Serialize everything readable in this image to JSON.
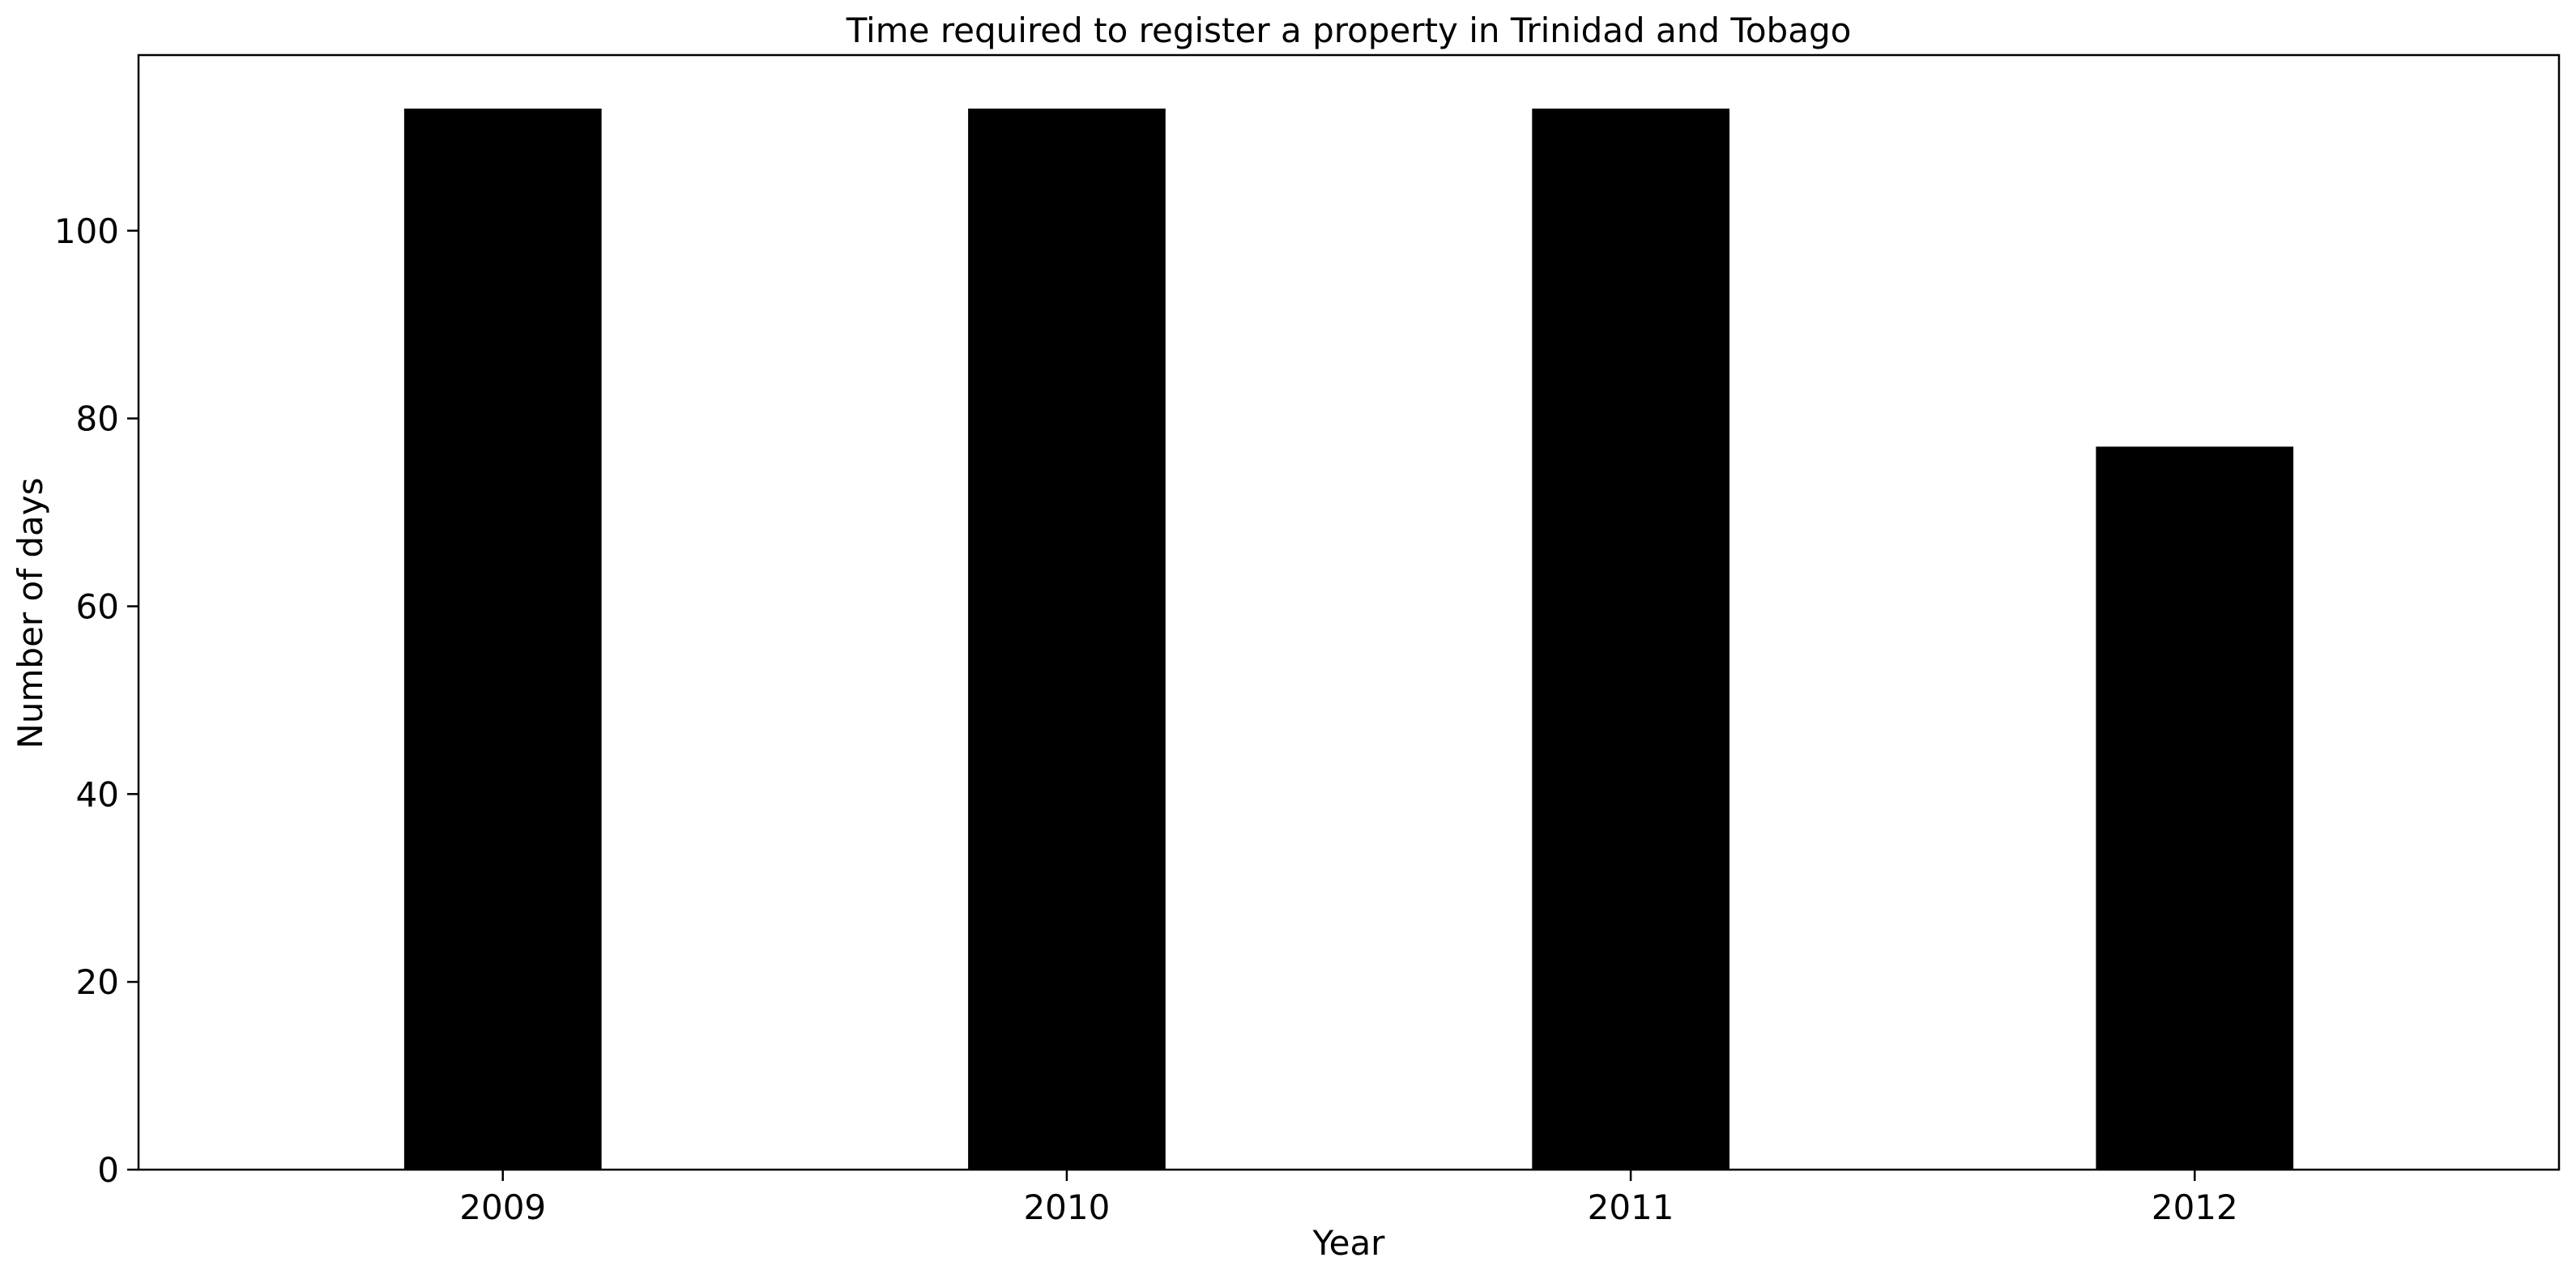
{
  "chart_data": {
    "type": "bar",
    "title": "Time required to register a property in Trinidad and Tobago",
    "xlabel": "Year",
    "ylabel": "Number of days",
    "categories": [
      "2009",
      "2010",
      "2011",
      "2012"
    ],
    "series": [
      {
        "values": [
          113,
          113,
          113,
          77
        ],
        "color": "#000000"
      }
    ],
    "ylim": [
      0,
      118.7
    ],
    "yticks": [
      0,
      20,
      40,
      60,
      80,
      100
    ],
    "grid": false,
    "legend": "none"
  }
}
